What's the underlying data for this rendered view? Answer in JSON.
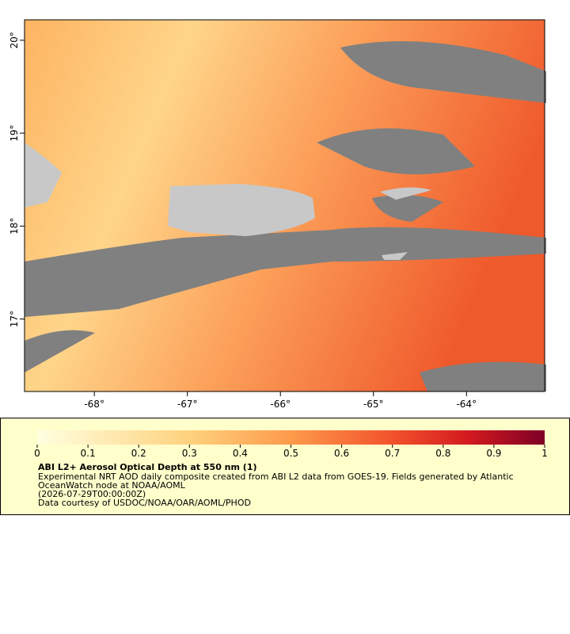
{
  "map": {
    "lonlim": [
      -68.75,
      -63.16
    ],
    "latlim": [
      16.22,
      20.22
    ],
    "xticks": [
      {
        "value": -68,
        "label": "-68°"
      },
      {
        "value": -67,
        "label": "-67°"
      },
      {
        "value": -66,
        "label": "-66°"
      },
      {
        "value": -65,
        "label": "-65°"
      },
      {
        "value": -64,
        "label": "-64°"
      }
    ],
    "yticks": [
      {
        "value": 17,
        "label": "17°"
      },
      {
        "value": 18,
        "label": "18°"
      },
      {
        "value": 19,
        "label": "19°"
      },
      {
        "value": 20,
        "label": "20°"
      }
    ],
    "colorbar": {
      "range": [
        0,
        1
      ],
      "ticks": [
        0,
        0.1,
        0.2,
        0.3,
        0.4,
        0.5,
        0.6,
        0.7,
        0.8,
        0.9,
        1
      ]
    },
    "legend": {
      "title": "ABI L2+ Aerosol Optical Depth at 550 nm (1)",
      "lines": [
        "Experimental NRT AOD daily composite created from ABI L2 data from GOES-19. Fields generated by Atlantic",
        "OceanWatch node at NOAA/AOML",
        "(2026-07-29T00:00:00Z)",
        "Data courtesy of USDOC/NOAA/OAR/AOML/PHOD"
      ]
    }
  }
}
